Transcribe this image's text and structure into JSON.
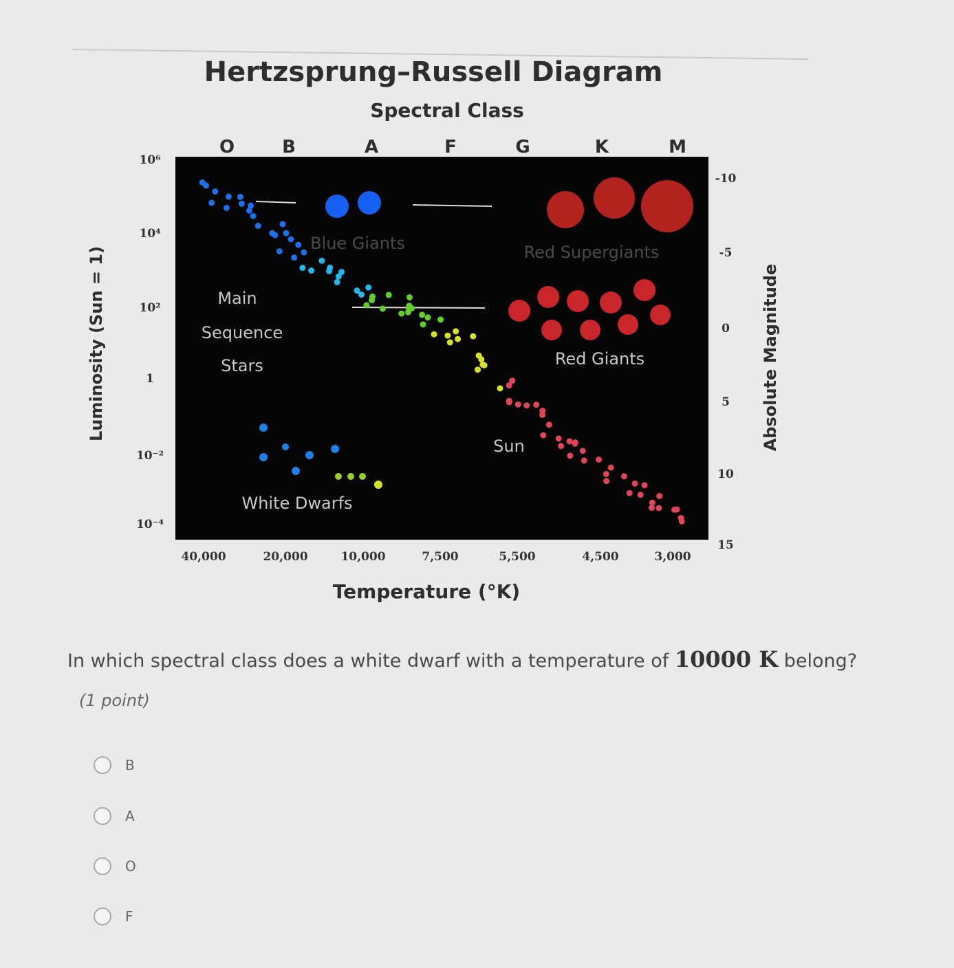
{
  "diagram": {
    "title": "Hertzsprung–Russell Diagram",
    "top_axis_title": "Spectral Class",
    "spectral_classes": [
      "O",
      "B",
      "A",
      "F",
      "G",
      "K",
      "M"
    ],
    "left_axis_title": "Luminosity (Sun = 1)",
    "luminosity_labels": [
      "10⁶",
      "10⁴",
      "10²",
      "1",
      "10⁻²",
      "10⁻⁴"
    ],
    "right_axis_title": "Absolute Magnitude",
    "magnitude_labels": [
      "-10",
      "-5",
      "0",
      "5",
      "10",
      "15"
    ],
    "bottom_axis_title": "Temperature (°K)",
    "temperature_labels": [
      "40,000",
      "20,000",
      "10,000",
      "7,500",
      "5,500",
      "4,500",
      "3,000"
    ],
    "regions": {
      "blue_giants": "Blue Giants",
      "red_supergiants": "Red Supergiants",
      "main_sequence": [
        "Main",
        "Sequence",
        "Stars"
      ],
      "red_giants": "Red Giants",
      "sun": "Sun",
      "white_dwarfs": "White Dwarfs"
    }
  },
  "question": {
    "text_before": "In which spectral class does a white dwarf with a temperature of ",
    "math": "10000 K",
    "text_after": " belong?",
    "points": "(1 point)"
  },
  "options": [
    "B",
    "A",
    "O",
    "F"
  ]
}
